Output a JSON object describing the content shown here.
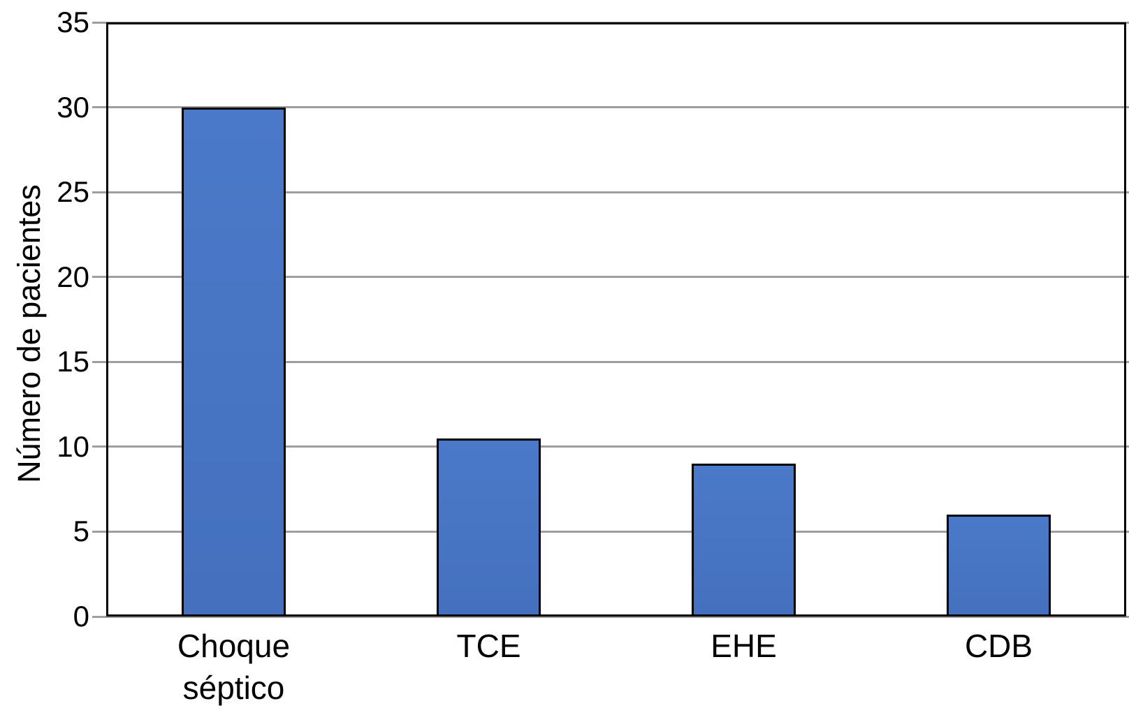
{
  "chart_data": {
    "type": "bar",
    "title": "",
    "xlabel": "",
    "ylabel": "Número de pacientes",
    "categories": [
      "Choque séptico",
      "TCE",
      "EHE",
      "CDB"
    ],
    "values": [
      30,
      10.5,
      9,
      6
    ],
    "ylim": [
      0,
      35
    ],
    "yticks": [
      0,
      5,
      10,
      15,
      20,
      25,
      30,
      35
    ],
    "grid": true,
    "legend": "none",
    "bar_color": "#4573C4",
    "bar_border_color": "#000000",
    "gridline_color": "#9E9E9E",
    "axis_border_color": "#000000",
    "background_color": "#FFFFFF"
  }
}
